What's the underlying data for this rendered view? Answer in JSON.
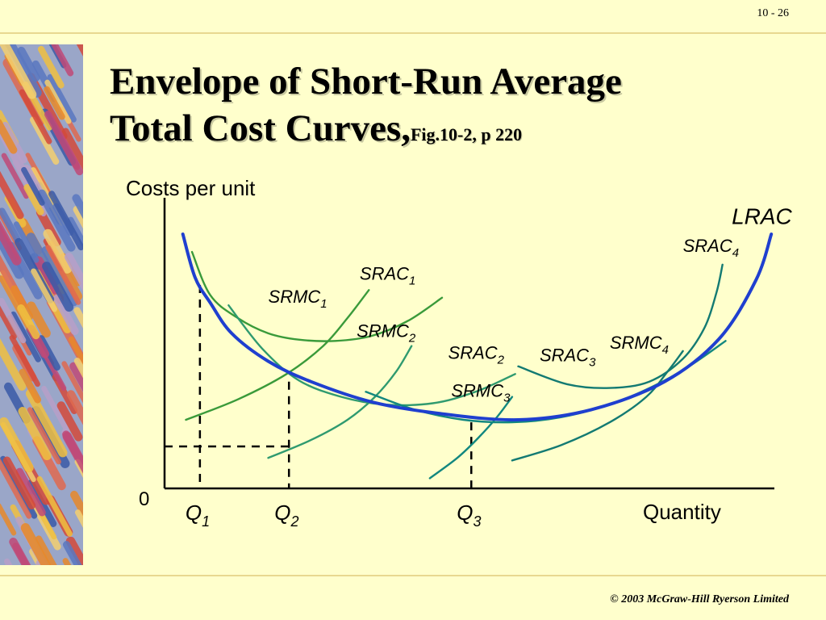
{
  "slide": {
    "number": "10 - 26",
    "title_main": "Envelope of Short-Run Average Total Cost Curves,",
    "title_ref": "Fig.10-2, p 220",
    "footer": "© 2003 McGraw-Hill Ryerson Limited"
  },
  "colors": {
    "background": "#ffffcc",
    "lrac": "#1f3fcf",
    "sr1": "#3a9a3a",
    "sr2": "#2f9a6f",
    "sr3": "#12877f",
    "sr4": "#137a72"
  },
  "chart_data": {
    "type": "line",
    "title": "Envelope of Short-Run Average Total Cost Curves",
    "ylabel": "Costs per unit",
    "xlabel": "Quantity",
    "origin_label": "0",
    "xlim": [
      0,
      100
    ],
    "ylim": [
      0,
      100
    ],
    "grid": false,
    "series": [
      {
        "key": "lrac",
        "name": "LRAC",
        "sub": "",
        "x": [
          3,
          5,
          7.5,
          11,
          17,
          24,
          34,
          45,
          58,
          70,
          82,
          91,
          97,
          99.5
        ],
        "y": [
          100,
          83,
          73,
          61,
          50,
          42,
          34,
          29.5,
          27,
          31,
          42,
          59,
          82,
          100
        ]
      },
      {
        "key": "srac1",
        "name": "SRAC",
        "sub": "1",
        "x": [
          4.5,
          7.5,
          12,
          17,
          22,
          28,
          34,
          40,
          45.5
        ],
        "y": [
          93,
          76,
          67,
          61,
          58.5,
          58,
          60,
          66,
          75
        ]
      },
      {
        "key": "srmc1",
        "name": "SRMC",
        "sub": "1",
        "x": [
          3.5,
          12,
          20,
          26,
          30,
          33.5
        ],
        "y": [
          27,
          35,
          45,
          56,
          67,
          78
        ]
      },
      {
        "key": "srac2",
        "name": "SRAC",
        "sub": "2",
        "x": [
          10.5,
          16,
          22,
          29,
          36,
          44,
          51,
          57.5
        ],
        "y": [
          72,
          55,
          42.5,
          36,
          33,
          33.5,
          38,
          45
        ]
      },
      {
        "key": "srmc2",
        "name": "SRMC",
        "sub": "2",
        "x": [
          17,
          24,
          30,
          34.5,
          38,
          40.5
        ],
        "y": [
          12,
          19,
          27,
          36,
          46,
          56
        ]
      },
      {
        "key": "srac3",
        "name": "SRAC",
        "sub": "3",
        "x": [
          33,
          41,
          49,
          57,
          65,
          73,
          80,
          86,
          92
        ],
        "y": [
          38,
          31,
          27,
          26,
          28,
          33,
          40,
          48,
          58
        ]
      },
      {
        "key": "srmc3",
        "name": "SRMC",
        "sub": "3",
        "x": [
          43.5,
          48,
          51.5,
          54.5,
          57
        ],
        "y": [
          4,
          12,
          20,
          28,
          36
        ]
      },
      {
        "key": "srac4",
        "name": "SRAC",
        "sub": "4",
        "x": [
          58,
          66,
          73,
          79.5,
          85,
          88.5,
          90.5,
          91.5
        ],
        "y": [
          48,
          41,
          39.5,
          42,
          51,
          63,
          77,
          88
        ]
      },
      {
        "key": "srmc4",
        "name": "SRMC",
        "sub": "4",
        "x": [
          57,
          65,
          73,
          79,
          82.5,
          85
        ],
        "y": [
          11,
          17,
          26,
          36,
          46,
          54
        ]
      }
    ],
    "labels": [
      {
        "text": "LRAC",
        "sub": "",
        "x": 93,
        "y": 104,
        "size": 28
      },
      {
        "text": "SRAC",
        "sub": "4",
        "x": 85,
        "y": 93,
        "size": 22
      },
      {
        "text": "SRAC",
        "sub": "1",
        "x": 32,
        "y": 82,
        "size": 22
      },
      {
        "text": "SRMC",
        "sub": "1",
        "x": 17,
        "y": 73,
        "size": 22
      },
      {
        "text": "SRMC",
        "sub": "2",
        "x": 31.5,
        "y": 59.5,
        "size": 22
      },
      {
        "text": "SRAC",
        "sub": "2",
        "x": 46.5,
        "y": 51,
        "size": 22
      },
      {
        "text": "SRAC",
        "sub": "3",
        "x": 61.5,
        "y": 50,
        "size": 22
      },
      {
        "text": "SRMC",
        "sub": "4",
        "x": 73,
        "y": 55,
        "size": 22
      },
      {
        "text": "SRMC",
        "sub": "3",
        "x": 47,
        "y": 36,
        "size": 22
      }
    ],
    "guides": [
      {
        "label": "Q",
        "sub": "1",
        "x": 5.8,
        "y": 80
      },
      {
        "label": "Q",
        "sub": "2",
        "x": 20.4,
        "y": 42
      },
      {
        "label": "Q",
        "sub": "3",
        "x": 50.3,
        "y": 26
      }
    ],
    "horizontal_guide": {
      "x": 20.4,
      "y": 16.5
    }
  }
}
